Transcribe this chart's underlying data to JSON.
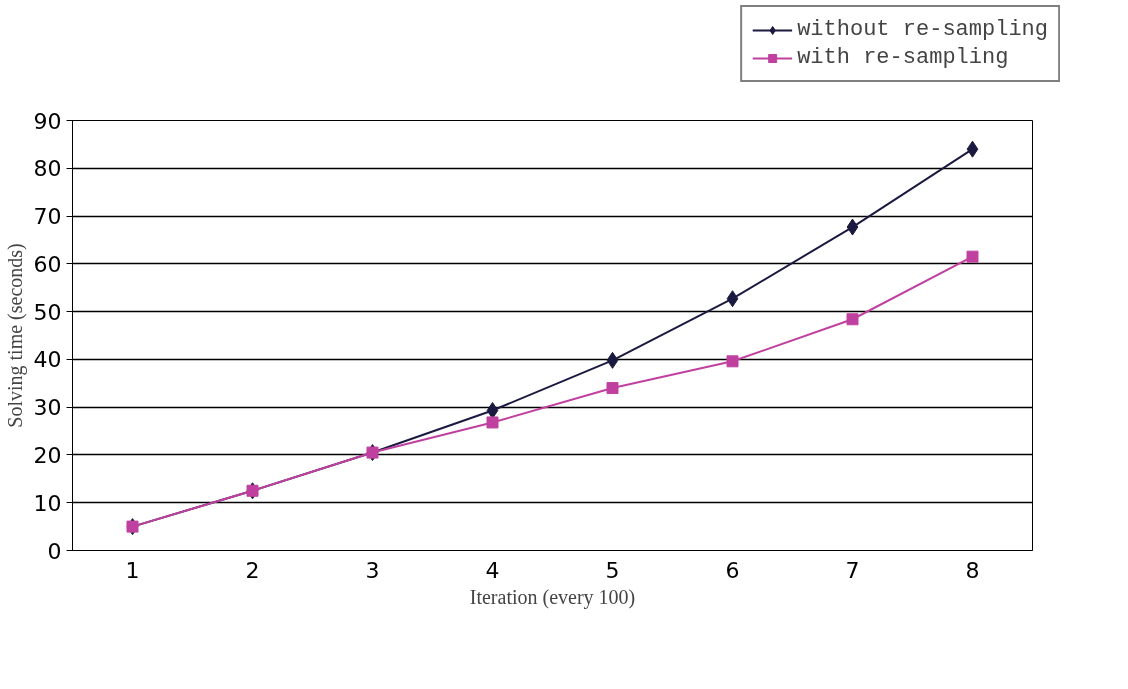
{
  "chart_data": {
    "type": "line",
    "xlabel": "Iteration (every 100)",
    "ylabel": "Solving time (seconds)",
    "categories": [
      "1",
      "2",
      "3",
      "4",
      "5",
      "6",
      "7",
      "8"
    ],
    "series": [
      {
        "name": "without re-sampling",
        "color": "#1a1a40",
        "marker": "diamond",
        "values": [
          5,
          12.5,
          20.5,
          29.3,
          39.8,
          52.7,
          67.7,
          84
        ]
      },
      {
        "name": "with re-sampling",
        "color": "#c040a0",
        "marker": "square",
        "values": [
          5,
          12.5,
          20.5,
          26.8,
          34,
          39.6,
          48.4,
          61.5
        ]
      }
    ],
    "ylim": [
      0,
      90
    ],
    "yticks": [
      0,
      10,
      20,
      30,
      40,
      50,
      60,
      70,
      80,
      90
    ],
    "grid": "y",
    "legend": "top right",
    "line_style": "solid"
  }
}
